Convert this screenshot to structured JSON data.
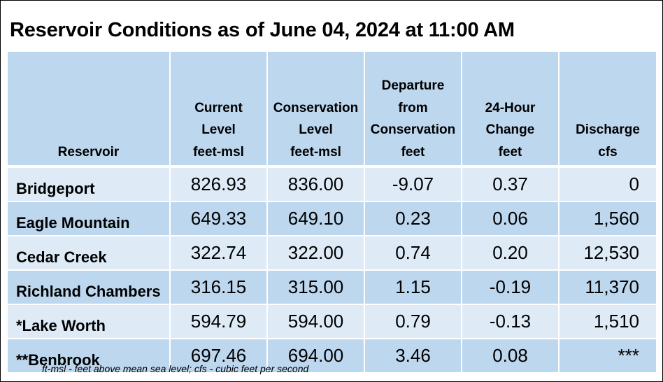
{
  "title": "Reservoir Conditions as of June 04, 2024 at 11:00 AM",
  "table": {
    "headers": [
      {
        "lines": [
          "Reservoir"
        ]
      },
      {
        "lines": [
          "Current",
          "Level",
          "feet-msl"
        ]
      },
      {
        "lines": [
          "Conservation",
          "Level",
          "feet-msl"
        ]
      },
      {
        "lines": [
          "Departure",
          "from",
          "Conservation",
          "feet"
        ]
      },
      {
        "lines": [
          "24-Hour",
          "Change",
          "feet"
        ]
      },
      {
        "lines": [
          "Discharge",
          "cfs"
        ]
      }
    ],
    "rows": [
      {
        "reservoir": "Bridgeport",
        "current_level": "826.93",
        "conservation_level": "836.00",
        "departure": "-9.07",
        "change_24h": "0.37",
        "discharge": "0"
      },
      {
        "reservoir": "Eagle Mountain",
        "current_level": "649.33",
        "conservation_level": "649.10",
        "departure": "0.23",
        "change_24h": "0.06",
        "discharge": "1,560"
      },
      {
        "reservoir": "Cedar Creek",
        "current_level": "322.74",
        "conservation_level": "322.00",
        "departure": "0.74",
        "change_24h": "0.20",
        "discharge": "12,530"
      },
      {
        "reservoir": "Richland Chambers",
        "current_level": "316.15",
        "conservation_level": "315.00",
        "departure": "1.15",
        "change_24h": "-0.19",
        "discharge": "11,370"
      },
      {
        "reservoir": "*Lake Worth",
        "current_level": "594.79",
        "conservation_level": "594.00",
        "departure": "0.79",
        "change_24h": "-0.13",
        "discharge": "1,510"
      },
      {
        "reservoir": "**Benbrook",
        "current_level": "697.46",
        "conservation_level": "694.00",
        "departure": "3.46",
        "change_24h": "0.08",
        "discharge": "***"
      }
    ]
  },
  "footnote": "ft-msl - feet above mean sea level; cfs - cubic feet per second",
  "colors": {
    "header_bg": "#bdd7ee",
    "row_light": "#deebf7",
    "row_dark": "#bdd7ee"
  }
}
